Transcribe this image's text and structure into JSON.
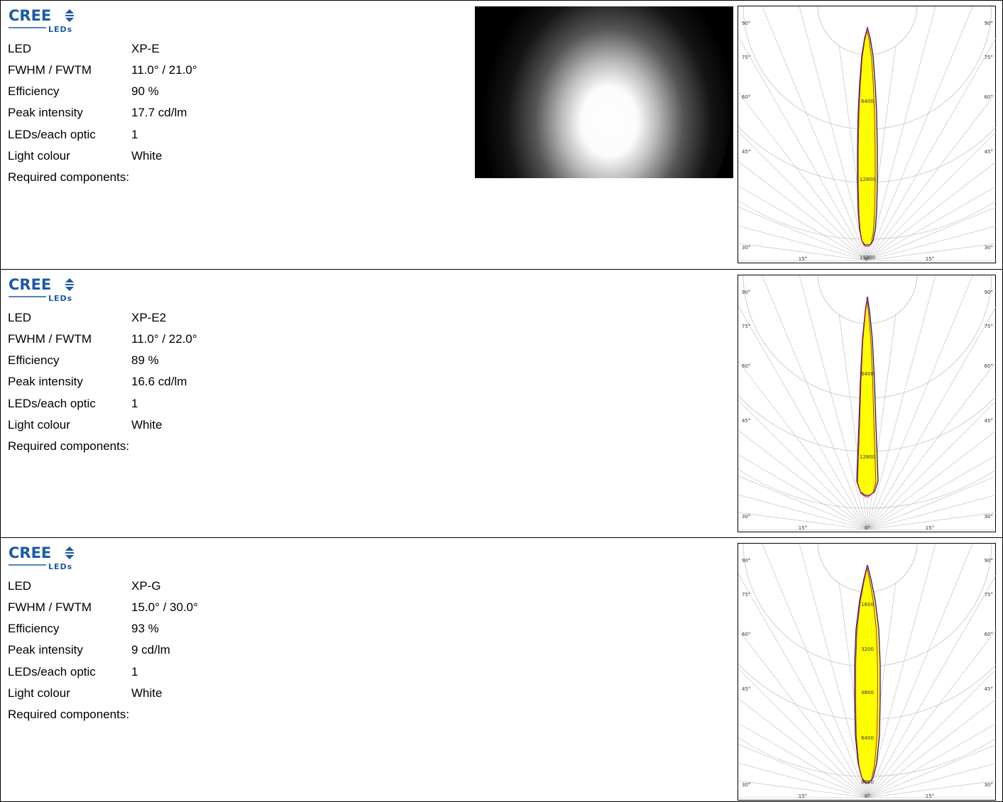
{
  "brand": {
    "name": "CREE",
    "sub": "LEDs",
    "color": "#1b5aa6"
  },
  "labels": {
    "led": "LED",
    "fwhm": "FWHM / FWTM",
    "efficiency": "Efficiency",
    "peak": "Peak intensity",
    "leds_per_optic": "LEDs/each optic",
    "colour": "Light colour",
    "required": "Required components:"
  },
  "products": [
    {
      "led": "XP-E",
      "fwhm": "11.0° / 21.0°",
      "efficiency": "90 %",
      "peak": "17.7 cd/lm",
      "leds_per_optic": "1",
      "colour": "White",
      "has_beam_image": true,
      "polar": {
        "angle_labels": [
          "90°",
          "75°",
          "60°",
          "45°",
          "30°",
          "15°",
          "0°"
        ],
        "ring_labels": [
          "6400",
          "12800",
          "19200"
        ]
      }
    },
    {
      "led": "XP-E2",
      "fwhm": "11.0° / 22.0°",
      "efficiency": "89 %",
      "peak": "16.6 cd/lm",
      "leds_per_optic": "1",
      "colour": "White",
      "has_beam_image": false,
      "polar": {
        "angle_labels": [
          "90°",
          "75°",
          "60°",
          "45°",
          "30°",
          "15°",
          "0°"
        ],
        "ring_labels": [
          "6400",
          "12800"
        ]
      }
    },
    {
      "led": "XP-G",
      "fwhm": "15.0° / 30.0°",
      "efficiency": "93 %",
      "peak": "9 cd/lm",
      "leds_per_optic": "1",
      "colour": "White",
      "has_beam_image": false,
      "polar": {
        "angle_labels": [
          "90°",
          "75°",
          "60°",
          "45°",
          "30°",
          "15°",
          "0°"
        ],
        "ring_labels": [
          "1600",
          "3200",
          "4800",
          "6400",
          "8000"
        ]
      }
    }
  ],
  "colors": {
    "curve_fill": "#ffff00",
    "curve_c0": "#1a1aa8",
    "curve_c90": "#cc2222",
    "grid": "#bbbbbb"
  }
}
